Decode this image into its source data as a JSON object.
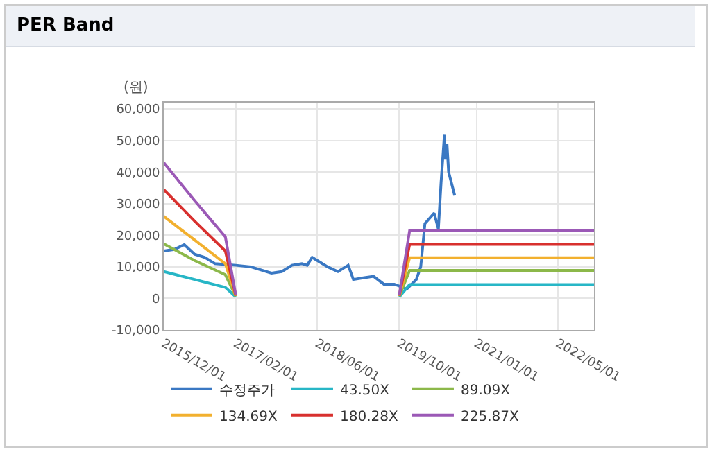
{
  "chart_data": {
    "type": "line",
    "title": "PER Band",
    "ylabel": "(원)",
    "xlim": [
      "2015-12-01",
      "2022-12-01"
    ],
    "xticks": [
      {
        "value": "2015-12-01",
        "label": "2015/12/01"
      },
      {
        "value": "2017-02-01",
        "label": "2017/02/01"
      },
      {
        "value": "2018-06-01",
        "label": "2018/06/01"
      },
      {
        "value": "2019-10-01",
        "label": "2019/10/01"
      },
      {
        "value": "2021-01-01",
        "label": "2021/01/01"
      },
      {
        "value": "2022-05-01",
        "label": "2022/05/01"
      }
    ],
    "ylim": [
      -10000,
      62000
    ],
    "yticks": [
      {
        "value": -10000,
        "label": "-10,000"
      },
      {
        "value": 0,
        "label": "0"
      },
      {
        "value": 10000,
        "label": "10,000"
      },
      {
        "value": 20000,
        "label": "20,000"
      },
      {
        "value": 30000,
        "label": "30,000"
      },
      {
        "value": 40000,
        "label": "40,000"
      },
      {
        "value": 50000,
        "label": "50,000"
      },
      {
        "value": 60000,
        "label": "60,000"
      }
    ],
    "grid": true,
    "legend": "bottom",
    "marker": "none",
    "line_style": "solid",
    "series": [
      {
        "name": "수정주가",
        "color": "#3a78c3",
        "x": [
          "2015-12-01",
          "2016-02-01",
          "2016-04-01",
          "2016-06-01",
          "2016-08-01",
          "2016-10-01",
          "2017-02-01",
          "2017-05-01",
          "2017-09-01",
          "2017-11-01",
          "2018-01-01",
          "2018-03-01",
          "2018-04-01",
          "2018-05-01",
          "2018-08-01",
          "2018-10-01",
          "2018-12-01",
          "2019-01-01",
          "2019-03-01",
          "2019-05-01",
          "2019-07-01",
          "2019-09-01",
          "2019-11-15",
          "2020-01-10",
          "2020-02-05",
          "2020-03-01",
          "2020-04-25",
          "2020-05-20",
          "2020-06-05",
          "2020-06-25",
          "2020-07-01",
          "2020-07-10",
          "2020-07-20",
          "2020-08-25"
        ],
        "values": [
          15000,
          15500,
          17000,
          14000,
          13000,
          11000,
          10500,
          10000,
          8000,
          8500,
          10500,
          11000,
          10500,
          13000,
          10000,
          8500,
          10500,
          6000,
          6500,
          7000,
          4500,
          4500,
          3000,
          6000,
          10000,
          23700,
          27000,
          22000,
          36700,
          51800,
          44000,
          49000,
          40000,
          32600
        ]
      },
      {
        "name": "43.50X",
        "color": "#27b6c6",
        "x": [
          "2015-12-01",
          "2016-06-01",
          "2016-12-01",
          "2017-02-01",
          "2017-03-01",
          "2019-10-01",
          "2019-12-01",
          "2022-12-01"
        ],
        "values": [
          8500,
          6000,
          3500,
          500,
          null,
          500,
          4400,
          4400
        ]
      },
      {
        "name": "89.09X",
        "color": "#8cb84a",
        "x": [
          "2015-12-01",
          "2016-06-01",
          "2016-12-01",
          "2017-02-01",
          "2017-03-01",
          "2019-10-01",
          "2019-12-01",
          "2022-12-01"
        ],
        "values": [
          17300,
          12000,
          7500,
          700,
          null,
          700,
          8900,
          8900
        ]
      },
      {
        "name": "134.69X",
        "color": "#f2b02e",
        "x": [
          "2015-12-01",
          "2016-06-01",
          "2016-12-01",
          "2017-02-01",
          "2017-03-01",
          "2019-10-01",
          "2019-12-01",
          "2022-12-01"
        ],
        "values": [
          26000,
          18500,
          11000,
          800,
          null,
          800,
          12900,
          12900
        ]
      },
      {
        "name": "180.28X",
        "color": "#d8302e",
        "x": [
          "2015-12-01",
          "2016-06-01",
          "2016-12-01",
          "2017-02-01",
          "2017-03-01",
          "2019-10-01",
          "2019-12-01",
          "2022-12-01"
        ],
        "values": [
          34500,
          24500,
          15000,
          900,
          null,
          900,
          17100,
          17100
        ]
      },
      {
        "name": "225.87X",
        "color": "#9b59b6",
        "x": [
          "2015-12-01",
          "2016-06-01",
          "2016-12-01",
          "2017-02-01",
          "2017-03-01",
          "2019-10-01",
          "2019-12-01",
          "2022-12-01"
        ],
        "values": [
          43000,
          31000,
          19500,
          1000,
          null,
          1000,
          21400,
          21400
        ]
      }
    ]
  }
}
